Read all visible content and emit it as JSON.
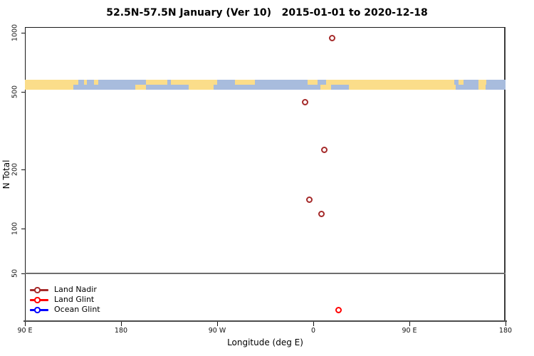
{
  "title": "52.5N-57.5N January (Ver 10)   2015-01-01 to 2020-12-18",
  "chart_data": {
    "type": "scatter",
    "title": "52.5N-57.5N January (Ver 10)   2015-01-01 to 2020-12-18",
    "xlabel": "Longitude (deg E)",
    "ylabel": "N Total",
    "x_axis": {
      "range": [
        -270,
        180
      ],
      "ticks": [
        {
          "label": "90 E",
          "lon": -270
        },
        {
          "label": "180",
          "lon": -180
        },
        {
          "label": "90 W",
          "lon": -90
        },
        {
          "label": "0",
          "lon": 0
        },
        {
          "label": "90 E",
          "lon": 90
        },
        {
          "label": "180",
          "lon": 180
        }
      ]
    },
    "y_axis": {
      "scale": "log",
      "range": [
        30,
        1100
      ],
      "ticks": [
        {
          "label": "1000",
          "value": 1000
        },
        {
          "label": "500",
          "value": 500
        },
        {
          "label": "200",
          "value": 200
        },
        {
          "label": "100",
          "value": 100
        },
        {
          "label": "50",
          "value": 50
        }
      ]
    },
    "reference_line": {
      "value": 50,
      "color": "#6e6e6e"
    },
    "grid": false,
    "legend_position": "bottom-left",
    "series": [
      {
        "name": "Land Nadir",
        "color": "#A52A2A",
        "points": [
          {
            "lon": 18,
            "n": 935
          },
          {
            "lon": -7,
            "n": 440
          },
          {
            "lon": 11,
            "n": 250
          },
          {
            "lon": -3,
            "n": 140
          },
          {
            "lon": 8,
            "n": 118
          }
        ]
      },
      {
        "name": "Land Glint",
        "color": "#FF0000",
        "points": [
          {
            "lon": 24,
            "n": 38
          }
        ]
      },
      {
        "name": "Ocean Glint",
        "color": "#0000FF",
        "points": []
      }
    ],
    "map_band": {
      "description": "world coastline strip at the N=500 level, land vs ocean for 52.5N-57.5N",
      "center_value": 500,
      "land_color": "#FBDD8A",
      "ocean_color": "#A8BCDD",
      "top_segments": [
        [
          -270,
          -220,
          "land"
        ],
        [
          -220,
          -215,
          "ocean"
        ],
        [
          -215,
          -211.7,
          "land"
        ],
        [
          -211.7,
          -205.3,
          "ocean"
        ],
        [
          -205.3,
          -201.3,
          "land"
        ],
        [
          -201.3,
          -156.7,
          "ocean"
        ],
        [
          -156.7,
          -136.7,
          "land"
        ],
        [
          -136.7,
          -133.3,
          "ocean"
        ],
        [
          -133.3,
          -90,
          "land"
        ],
        [
          -90,
          -73.3,
          "ocean"
        ],
        [
          -73.3,
          -54.7,
          "land"
        ],
        [
          -54.7,
          -5.3,
          "ocean"
        ],
        [
          -5.3,
          4,
          "land"
        ],
        [
          4,
          12,
          "ocean"
        ],
        [
          12,
          132,
          "land"
        ],
        [
          132,
          136,
          "ocean"
        ],
        [
          136,
          140.7,
          "land"
        ],
        [
          140.7,
          154.7,
          "ocean"
        ],
        [
          154.7,
          162,
          "land"
        ],
        [
          162,
          180,
          "ocean"
        ]
      ],
      "bottom_segments": [
        [
          -270,
          -224.7,
          "land"
        ],
        [
          -224.7,
          -166.7,
          "ocean"
        ],
        [
          -166.7,
          -156.7,
          "land"
        ],
        [
          -156.7,
          -116.7,
          "ocean"
        ],
        [
          -116.7,
          -93.3,
          "land"
        ],
        [
          -93.3,
          6.7,
          "ocean"
        ],
        [
          6.7,
          16.7,
          "land"
        ],
        [
          16.7,
          33.3,
          "ocean"
        ],
        [
          33.3,
          133.3,
          "land"
        ],
        [
          133.3,
          154.7,
          "ocean"
        ],
        [
          154.7,
          161.3,
          "land"
        ],
        [
          161.3,
          180,
          "ocean"
        ]
      ]
    }
  }
}
